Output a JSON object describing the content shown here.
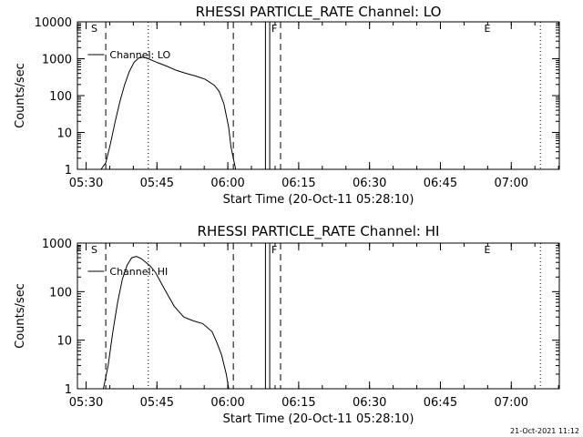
{
  "footer": {
    "timestamp": "21-Oct-2021 11:12"
  },
  "chart_data": [
    {
      "type": "line",
      "title": "RHESSI PARTICLE_RATE Channel: LO",
      "xlabel": "Start Time (20-Oct-11 05:28:10)",
      "ylabel": "Counts/sec",
      "yscale": "log",
      "ylim": [
        1,
        10000
      ],
      "xlim_minutes": [
        0,
        102
      ],
      "xticks": [
        "05:30",
        "05:45",
        "06:00",
        "06:15",
        "06:30",
        "06:45",
        "07:00"
      ],
      "yticks": [
        "1",
        "10",
        "100",
        "1000",
        "10000"
      ],
      "legend": "Channel: LO",
      "markers": [
        "F",
        "S",
        "F",
        "E"
      ],
      "series": [
        {
          "name": "Channel: LO",
          "x": [
            "05:33:10",
            "05:34:10",
            "05:35:10",
            "05:36:10",
            "05:37:10",
            "05:38:10",
            "05:39:10",
            "05:40:10",
            "05:41:10",
            "05:42:10",
            "05:43:10",
            "05:44:10",
            "05:45:10",
            "05:47:10",
            "05:49:10",
            "05:51:10",
            "05:53:10",
            "05:55:10",
            "05:57:10",
            "05:58:10",
            "05:59:10",
            "06:00:10",
            "06:00:40",
            "06:01:40"
          ],
          "y": [
            1,
            1.5,
            5,
            20,
            70,
            200,
            450,
            800,
            1050,
            1100,
            1000,
            880,
            780,
            620,
            480,
            400,
            340,
            280,
            190,
            130,
            60,
            14,
            4,
            1
          ]
        }
      ]
    },
    {
      "type": "line",
      "title": "RHESSI PARTICLE_RATE Channel: HI",
      "xlabel": "Start Time (20-Oct-11 05:28:10)",
      "ylabel": "Counts/sec",
      "yscale": "log",
      "ylim": [
        1,
        1000
      ],
      "xlim_minutes": [
        0,
        102
      ],
      "xticks": [
        "05:30",
        "05:45",
        "06:00",
        "06:15",
        "06:30",
        "06:45",
        "07:00"
      ],
      "yticks": [
        "1",
        "10",
        "100",
        "1000"
      ],
      "legend": "Channel: HI",
      "markers": [
        "F",
        "S",
        "F",
        "E"
      ],
      "series": [
        {
          "name": "Channel: HI",
          "x": [
            "05:33:40",
            "05:34:40",
            "05:35:40",
            "05:36:40",
            "05:37:40",
            "05:38:40",
            "05:39:40",
            "05:40:40",
            "05:41:40",
            "05:42:40",
            "05:43:40",
            "05:44:40",
            "05:46:40",
            "05:48:40",
            "05:50:40",
            "05:52:40",
            "05:54:40",
            "05:56:40",
            "05:57:40",
            "05:58:40",
            "05:59:40",
            "06:00:10"
          ],
          "y": [
            1,
            3,
            15,
            60,
            180,
            350,
            500,
            530,
            480,
            400,
            330,
            250,
            110,
            50,
            30,
            25,
            22,
            15,
            9,
            5,
            2,
            1
          ]
        }
      ]
    }
  ]
}
